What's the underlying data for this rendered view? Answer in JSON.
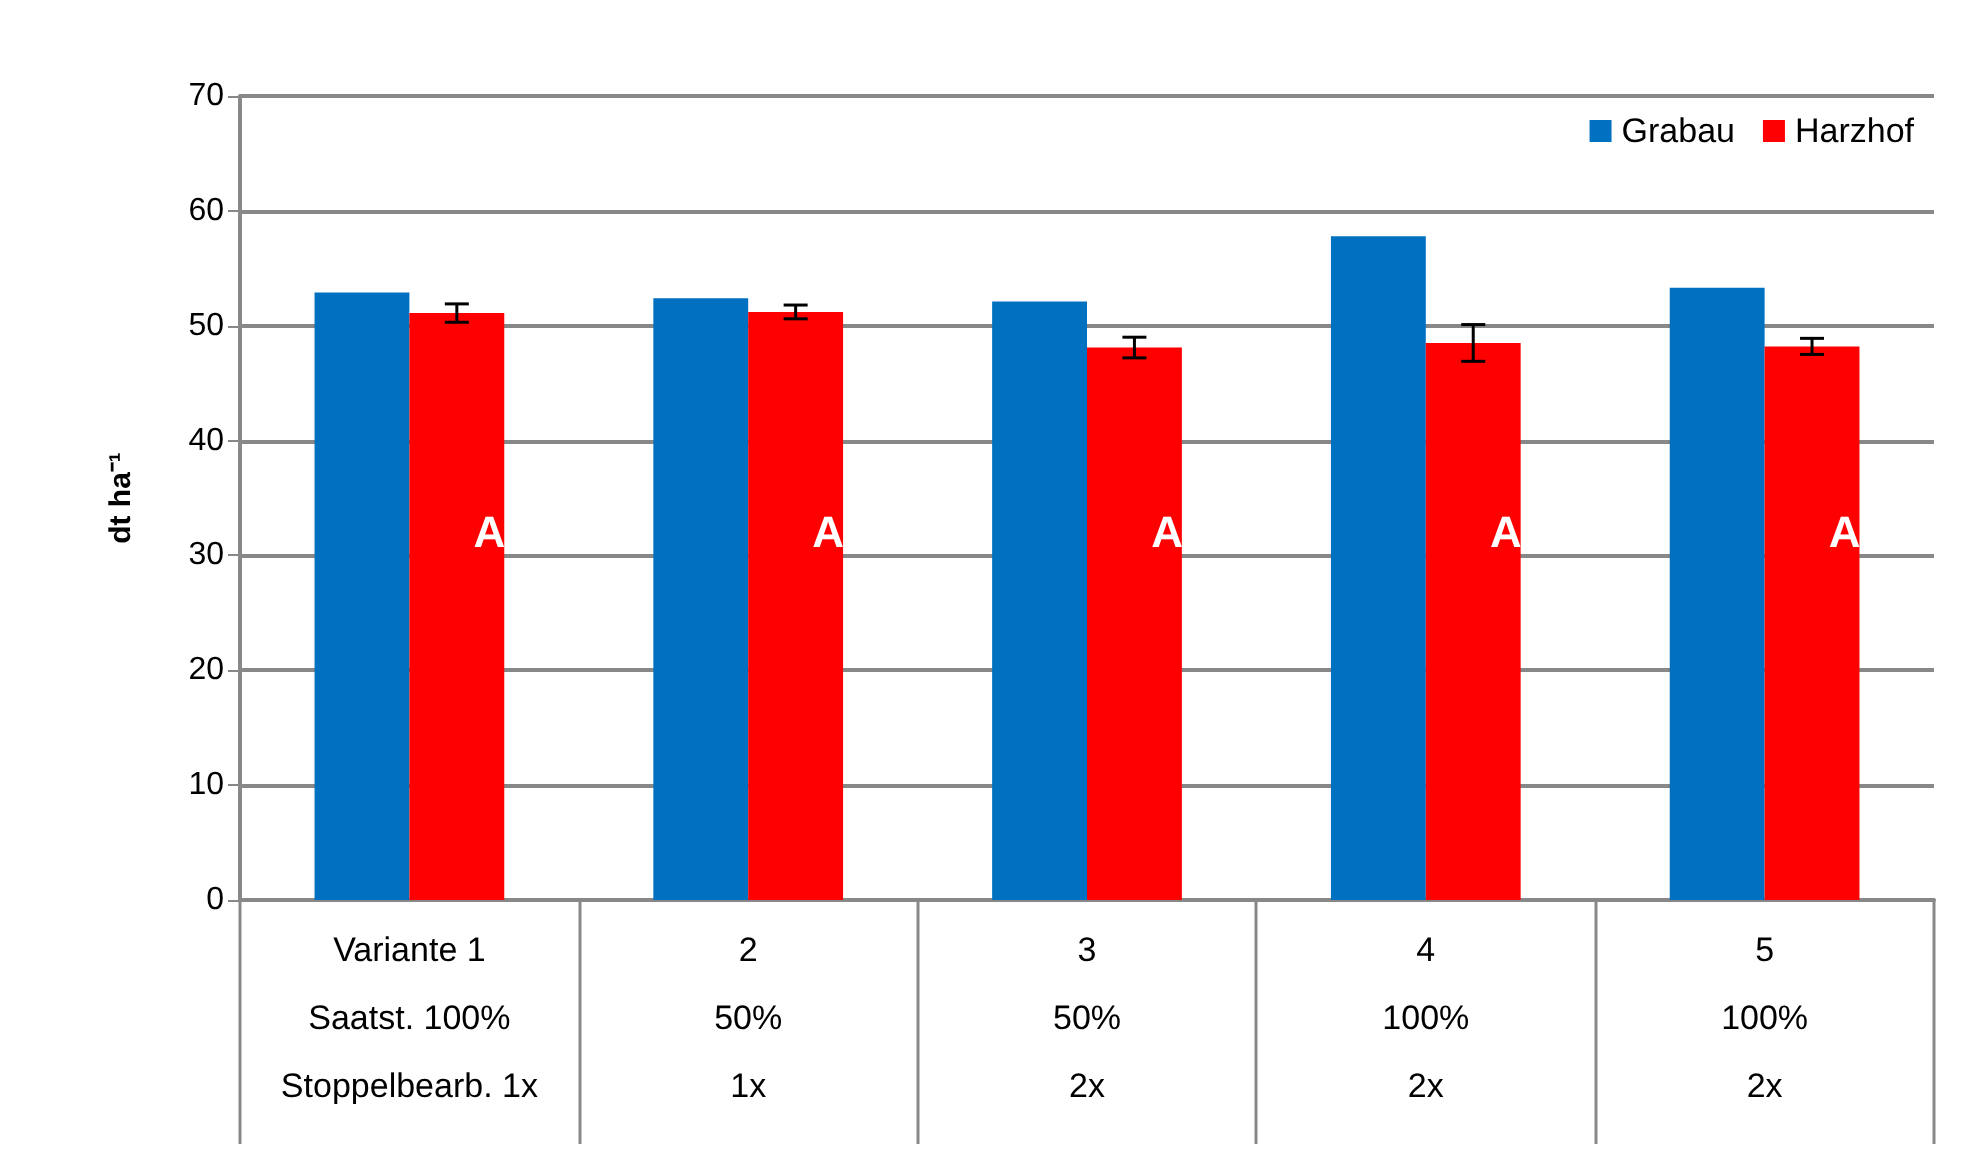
{
  "chart_data": {
    "type": "bar",
    "ylabel": "dt ha⁻¹",
    "categories": [
      "Variante 1\nSaatst. 100%\nStoppelbearb. 1x",
      "2\n50%\n1x",
      "3\n50%\n2x",
      "4\n100%\n2x",
      "5\n100%\n2x"
    ],
    "series": [
      {
        "name": "Grabau",
        "color": "#0070c0",
        "values": [
          52.9,
          52.4,
          52.1,
          57.8,
          53.3
        ]
      },
      {
        "name": "Harzhof",
        "color": "#ff0000",
        "values": [
          51.1,
          51.2,
          48.1,
          48.5,
          48.2
        ],
        "errors": [
          0.8,
          0.6,
          0.9,
          1.6,
          0.7
        ]
      }
    ],
    "ylim": [
      0,
      70
    ],
    "yticks": [
      0,
      10,
      20,
      30,
      40,
      50,
      60,
      70
    ],
    "grid": "y",
    "legend": "top right",
    "annotations": [
      {
        "text": "A",
        "x": "Variante 1\nSaatst. 100%\nStoppelbearb. 1x",
        "y": 32
      },
      {
        "text": "A",
        "x": "2\n50%\n1x",
        "y": 32
      },
      {
        "text": "A",
        "x": "3\n50%\n2x",
        "y": 32
      },
      {
        "text": "A",
        "x": "4\n100%\n2x",
        "y": 32
      },
      {
        "text": "A",
        "x": "5\n100%\n2x",
        "y": 32
      }
    ]
  }
}
